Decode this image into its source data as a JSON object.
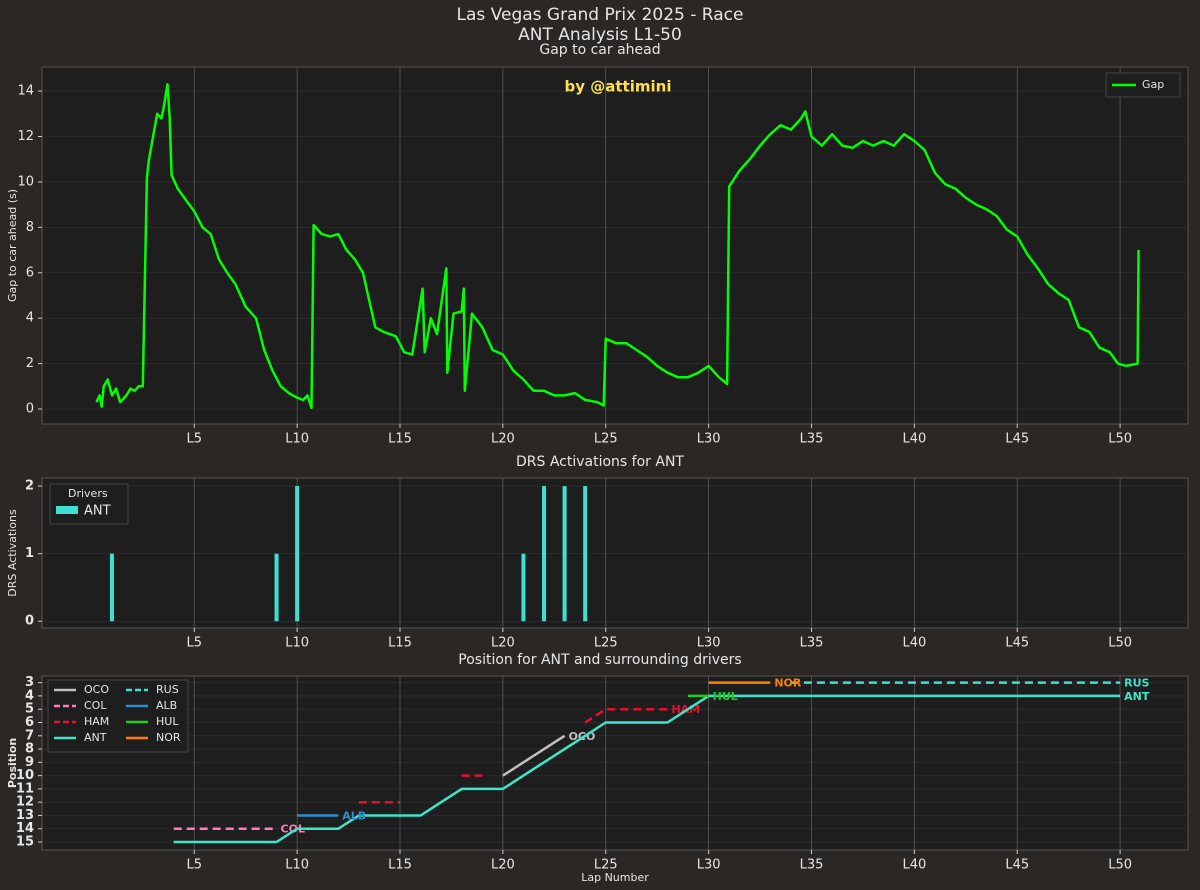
{
  "figure": {
    "title": "Las Vegas Grand Prix 2025 - Race",
    "subtitle": "ANT Analysis L1-50"
  },
  "chart_data": [
    {
      "type": "line",
      "title": "Gap to car ahead",
      "ylabel": "Gap to car ahead (s)",
      "annotation": "by @attimini",
      "xlim": [
        -2.4,
        53.3
      ],
      "ylim": [
        -0.66,
        15.06
      ],
      "xticks": [
        {
          "value": 5,
          "label": "L5"
        },
        {
          "value": 10,
          "label": "L10"
        },
        {
          "value": 15,
          "label": "L15"
        },
        {
          "value": 20,
          "label": "L20"
        },
        {
          "value": 25,
          "label": "L25"
        },
        {
          "value": 30,
          "label": "L30"
        },
        {
          "value": 35,
          "label": "L35"
        },
        {
          "value": 40,
          "label": "L40"
        },
        {
          "value": 45,
          "label": "L45"
        },
        {
          "value": 50,
          "label": "L50"
        }
      ],
      "yticks": [
        0,
        2,
        4,
        6,
        8,
        10,
        12,
        14
      ],
      "grid": true,
      "legend": "upper right",
      "series": [
        {
          "name": "Gap",
          "color": "#00ff00",
          "x": [
            0.25,
            0.4,
            0.5,
            0.6,
            0.8,
            1.0,
            1.2,
            1.4,
            1.7,
            1.9,
            2.1,
            2.3,
            2.5,
            2.7,
            2.8,
            3.0,
            3.2,
            3.4,
            3.5,
            3.7,
            3.8,
            3.9,
            4.2,
            4.6,
            5.0,
            5.4,
            5.8,
            6.2,
            6.6,
            7.0,
            7.5,
            8.0,
            8.4,
            8.8,
            9.2,
            9.6,
            10.0,
            10.3,
            10.5,
            10.7,
            10.8,
            11.2,
            11.6,
            12.0,
            12.4,
            12.8,
            13.2,
            13.5,
            13.8,
            14.2,
            14.8,
            15.2,
            15.6,
            16.1,
            16.2,
            16.5,
            16.8,
            17.25,
            17.3,
            17.6,
            18.0,
            18.1,
            18.15,
            18.5,
            19.0,
            19.5,
            20.0,
            20.5,
            21.0,
            21.5,
            22.0,
            22.5,
            23.0,
            23.5,
            24.0,
            24.6,
            24.9,
            25.0,
            25.5,
            26.0,
            26.5,
            27.0,
            27.5,
            28.0,
            28.5,
            29.0,
            29.5,
            30.0,
            30.5,
            30.9,
            31.0,
            31.5,
            32.0,
            32.5,
            33.0,
            33.5,
            34.0,
            34.5,
            34.7,
            35.0,
            35.5,
            36.0,
            36.5,
            37.0,
            37.5,
            38.0,
            38.5,
            39.0,
            39.5,
            40.0,
            40.5,
            41.0,
            41.5,
            42.0,
            42.5,
            43.0,
            43.5,
            44.0,
            44.5,
            45.0,
            45.5,
            46.0,
            46.5,
            47.0,
            47.5,
            48.0,
            48.5,
            49.0,
            49.5,
            49.9,
            50.3,
            50.85,
            50.9
          ],
          "values": [
            0.3,
            0.6,
            0.1,
            1.0,
            1.3,
            0.6,
            0.9,
            0.3,
            0.6,
            0.9,
            0.8,
            1.0,
            1.0,
            10.2,
            11.0,
            12.0,
            13.0,
            12.8,
            13.2,
            14.3,
            12.9,
            10.3,
            9.7,
            9.2,
            8.7,
            8.0,
            7.7,
            6.6,
            6.0,
            5.5,
            4.5,
            4.0,
            2.6,
            1.7,
            1.0,
            0.7,
            0.5,
            0.4,
            0.6,
            0.05,
            8.1,
            7.7,
            7.6,
            7.7,
            7.0,
            6.6,
            6.0,
            4.8,
            3.6,
            3.4,
            3.2,
            2.5,
            2.4,
            5.3,
            2.5,
            4.0,
            3.3,
            6.2,
            1.6,
            4.2,
            4.3,
            5.3,
            0.8,
            4.2,
            3.6,
            2.6,
            2.4,
            1.7,
            1.3,
            0.8,
            0.8,
            0.6,
            0.6,
            0.7,
            0.4,
            0.3,
            0.15,
            3.1,
            2.9,
            2.9,
            2.6,
            2.3,
            1.9,
            1.6,
            1.4,
            1.4,
            1.6,
            1.9,
            1.4,
            1.1,
            9.8,
            10.5,
            11.0,
            11.6,
            12.1,
            12.5,
            12.3,
            12.8,
            13.1,
            12.0,
            11.6,
            12.1,
            11.6,
            11.5,
            11.8,
            11.6,
            11.8,
            11.6,
            12.1,
            11.8,
            11.4,
            10.4,
            9.9,
            9.7,
            9.3,
            9.0,
            8.8,
            8.5,
            7.9,
            7.6,
            6.8,
            6.2,
            5.5,
            5.1,
            4.8,
            3.6,
            3.4,
            2.7,
            2.5,
            2.0,
            1.9,
            2.0,
            7.0
          ]
        }
      ]
    },
    {
      "type": "bar",
      "title": "DRS Activations for ANT",
      "ylabel": "DRS Activations",
      "legend_title": "Drivers",
      "legend": "upper left",
      "xlim": [
        -2.4,
        53.3
      ],
      "ylim": [
        -0.1,
        2.12
      ],
      "xticks": [
        {
          "value": 5,
          "label": "L5"
        },
        {
          "value": 10,
          "label": "L10"
        },
        {
          "value": 15,
          "label": "L15"
        },
        {
          "value": 20,
          "label": "L20"
        },
        {
          "value": 25,
          "label": "L25"
        },
        {
          "value": 30,
          "label": "L30"
        },
        {
          "value": 35,
          "label": "L35"
        },
        {
          "value": 40,
          "label": "L40"
        },
        {
          "value": 45,
          "label": "L45"
        },
        {
          "value": 50,
          "label": "L50"
        }
      ],
      "yticks": [
        0,
        1,
        2
      ],
      "grid": true,
      "series": [
        {
          "name": "ANT",
          "color": "#40e0d0",
          "x": [
            1,
            9,
            10,
            21,
            22,
            23,
            24
          ],
          "values": [
            1,
            1,
            2,
            1,
            2,
            2,
            2
          ]
        }
      ]
    },
    {
      "type": "line",
      "title": "Position for ANT and surrounding drivers",
      "xlabel": "Lap Number",
      "ylabel": "Position",
      "legend": "upper left",
      "xlim": [
        -2.4,
        53.3
      ],
      "ylim": [
        15.6,
        2.5
      ],
      "xticks": [
        {
          "value": 5,
          "label": "L5"
        },
        {
          "value": 10,
          "label": "L10"
        },
        {
          "value": 15,
          "label": "L15"
        },
        {
          "value": 20,
          "label": "L20"
        },
        {
          "value": 25,
          "label": "L25"
        },
        {
          "value": 30,
          "label": "L30"
        },
        {
          "value": 35,
          "label": "L35"
        },
        {
          "value": 40,
          "label": "L40"
        },
        {
          "value": 45,
          "label": "L45"
        },
        {
          "value": 50,
          "label": "L50"
        }
      ],
      "yticks": [
        3,
        4,
        5,
        6,
        7,
        8,
        9,
        10,
        11,
        12,
        13,
        14,
        15
      ],
      "grid": true,
      "series": [
        {
          "name": "OCO",
          "color": "#c0c0c0",
          "dashed": false,
          "x": [
            20,
            23
          ],
          "values": [
            10,
            7
          ]
        },
        {
          "name": "COL",
          "color": "#ff7eb6",
          "dashed": true,
          "x": [
            4,
            9
          ],
          "values": [
            14,
            14
          ]
        },
        {
          "name": "HAM",
          "color": "#e8112d",
          "dashed": true,
          "x": [
            13,
            15,
            16,
            18,
            19,
            20,
            24,
            25,
            28
          ],
          "values": [
            12,
            12,
            null,
            10,
            10,
            null,
            6,
            5,
            5
          ]
        },
        {
          "name": "ANT",
          "color": "#3ee6c8",
          "dashed": false,
          "x": [
            4,
            9,
            10,
            12,
            13,
            16,
            17,
            18,
            20,
            21,
            22,
            23,
            24,
            25,
            28,
            29,
            30,
            50
          ],
          "values": [
            15,
            15,
            14,
            14,
            13,
            13,
            12,
            11,
            11,
            10,
            9,
            8,
            7,
            6,
            6,
            5,
            4,
            4
          ]
        },
        {
          "name": "RUS",
          "color": "#40e0d0",
          "dashed": true,
          "x": [
            34,
            50
          ],
          "values": [
            3,
            3
          ]
        },
        {
          "name": "ALB",
          "color": "#2a8fd0",
          "dashed": false,
          "x": [
            10,
            12
          ],
          "values": [
            13,
            13
          ]
        },
        {
          "name": "HUL",
          "color": "#22cc22",
          "dashed": false,
          "x": [
            29,
            30
          ],
          "values": [
            4,
            4
          ]
        },
        {
          "name": "NOR",
          "color": "#ff8000",
          "dashed": false,
          "x": [
            30,
            33
          ],
          "values": [
            3,
            3
          ]
        }
      ]
    }
  ]
}
